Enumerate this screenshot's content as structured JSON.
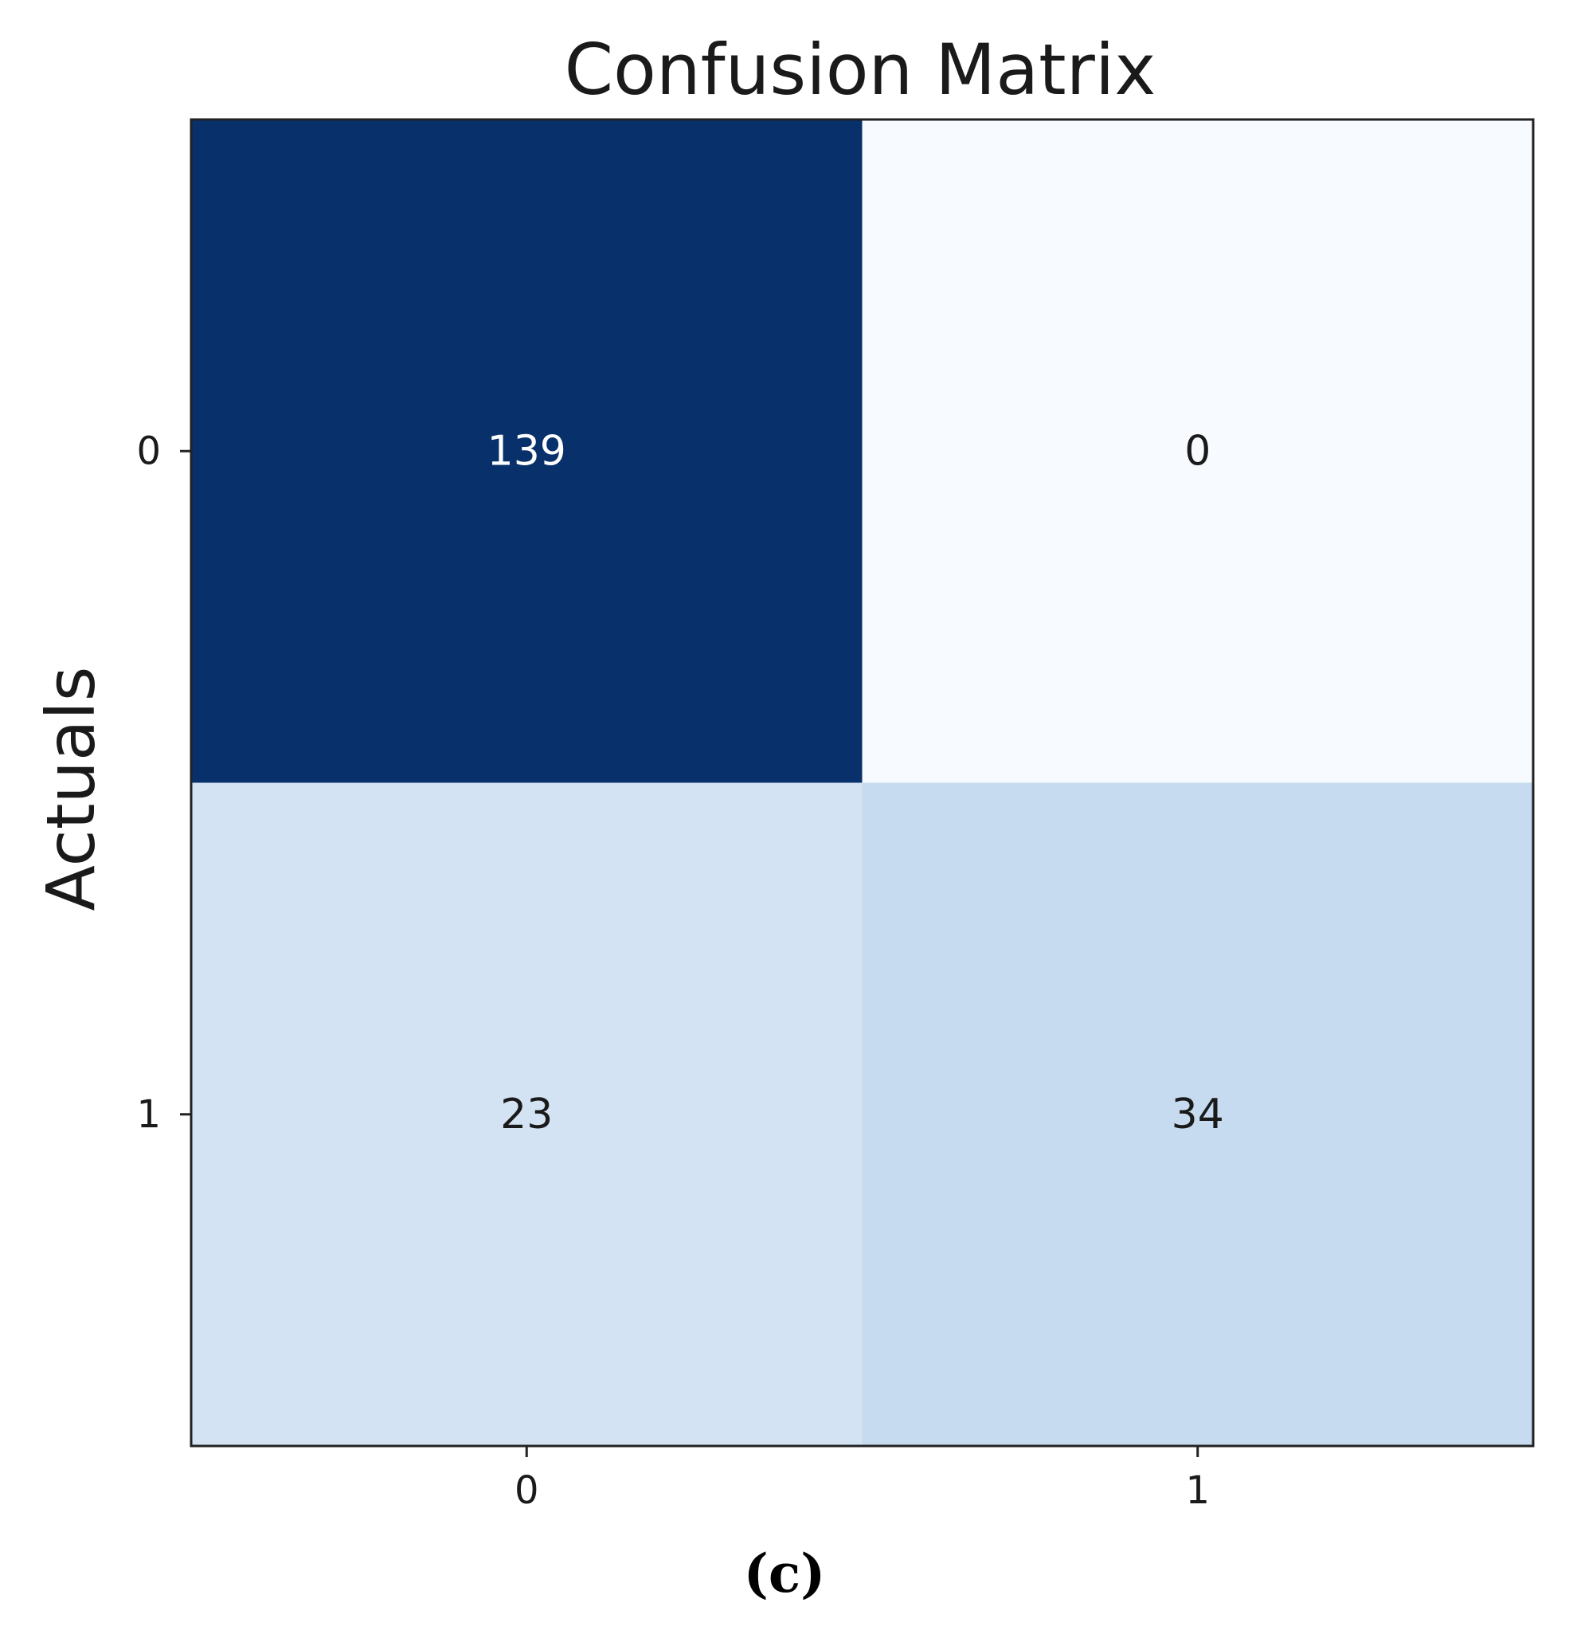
{
  "chart_data": {
    "type": "heatmap",
    "title": "Confusion Matrix",
    "xlabel": "",
    "ylabel": "Actuals",
    "x_ticks": [
      "0",
      "1"
    ],
    "y_ticks": [
      "0",
      "1"
    ],
    "matrix": [
      [
        139,
        0
      ],
      [
        23,
        34
      ]
    ],
    "colormap": "Blues",
    "cell_colors": [
      [
        "#08306b",
        "#f7fbff"
      ],
      [
        "#d3e3f3",
        "#c6dbef"
      ]
    ],
    "cell_text_colors": [
      [
        "#ffffff",
        "#1a1a1a"
      ],
      [
        "#1a1a1a",
        "#1a1a1a"
      ]
    ],
    "grid": false
  },
  "caption": "(c)"
}
